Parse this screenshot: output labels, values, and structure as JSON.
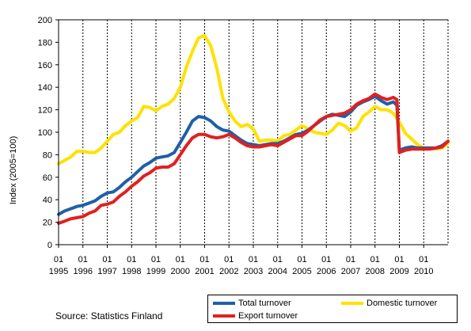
{
  "source_text": "Source: Statistics Finland",
  "chart_data": {
    "type": "line",
    "title": "",
    "xlabel": "",
    "ylabel": "Index (2005=100)",
    "ylim": [
      0,
      200
    ],
    "yticks": [
      0,
      20,
      40,
      60,
      80,
      100,
      120,
      140,
      160,
      180,
      200
    ],
    "xlim": [
      1995.0,
      2011.0
    ],
    "x_tick_month": "01",
    "x_tick_years": [
      "1995",
      "1996",
      "1997",
      "1998",
      "1999",
      "2000",
      "2001",
      "2002",
      "2003",
      "2004",
      "2005",
      "2006",
      "2007",
      "2008",
      "2009",
      "2010"
    ],
    "grid": "vertical dashed at each year, solid at 200",
    "legend_position": "bottom-right",
    "series": [
      {
        "name": "Domestic turnover",
        "color": "#ffe100",
        "points": [
          [
            1995.0,
            72
          ],
          [
            1995.25,
            75
          ],
          [
            1995.5,
            78
          ],
          [
            1995.75,
            83
          ],
          [
            1996.0,
            83
          ],
          [
            1996.25,
            82
          ],
          [
            1996.5,
            82
          ],
          [
            1996.75,
            86
          ],
          [
            1997.0,
            92
          ],
          [
            1997.25,
            98
          ],
          [
            1997.5,
            100
          ],
          [
            1997.75,
            106
          ],
          [
            1998.0,
            110
          ],
          [
            1998.25,
            113
          ],
          [
            1998.5,
            123
          ],
          [
            1998.75,
            122
          ],
          [
            1999.0,
            119
          ],
          [
            1999.25,
            123
          ],
          [
            1999.5,
            125
          ],
          [
            1999.75,
            130
          ],
          [
            2000.0,
            140
          ],
          [
            2000.25,
            158
          ],
          [
            2000.5,
            172
          ],
          [
            2000.75,
            184
          ],
          [
            2001.0,
            186
          ],
          [
            2001.25,
            177
          ],
          [
            2001.5,
            157
          ],
          [
            2001.75,
            130
          ],
          [
            2002.0,
            118
          ],
          [
            2002.25,
            110
          ],
          [
            2002.5,
            105
          ],
          [
            2002.75,
            107
          ],
          [
            2003.0,
            103
          ],
          [
            2003.25,
            92
          ],
          [
            2003.5,
            93
          ],
          [
            2003.75,
            93
          ],
          [
            2004.0,
            92
          ],
          [
            2004.25,
            97
          ],
          [
            2004.5,
            98
          ],
          [
            2004.75,
            102
          ],
          [
            2005.0,
            106
          ],
          [
            2005.25,
            103
          ],
          [
            2005.5,
            100
          ],
          [
            2005.75,
            99
          ],
          [
            2006.0,
            98
          ],
          [
            2006.25,
            102
          ],
          [
            2006.5,
            108
          ],
          [
            2006.75,
            106
          ],
          [
            2007.0,
            101
          ],
          [
            2007.25,
            104
          ],
          [
            2007.5,
            114
          ],
          [
            2007.75,
            118
          ],
          [
            2008.0,
            123
          ],
          [
            2008.25,
            120
          ],
          [
            2008.5,
            120
          ],
          [
            2008.75,
            117
          ],
          [
            2009.0,
            109
          ],
          [
            2009.25,
            99
          ],
          [
            2009.5,
            94
          ],
          [
            2009.75,
            89
          ],
          [
            2010.0,
            86
          ],
          [
            2010.25,
            86
          ],
          [
            2010.5,
            85
          ],
          [
            2010.75,
            86
          ],
          [
            2011.0,
            90
          ]
        ]
      },
      {
        "name": "Total turnover",
        "color": "#1f5fa8",
        "points": [
          [
            1995.0,
            27
          ],
          [
            1995.25,
            30
          ],
          [
            1995.5,
            32
          ],
          [
            1995.75,
            34
          ],
          [
            1996.0,
            35
          ],
          [
            1996.25,
            37
          ],
          [
            1996.5,
            39
          ],
          [
            1996.75,
            43
          ],
          [
            1997.0,
            46
          ],
          [
            1997.25,
            47
          ],
          [
            1997.5,
            51
          ],
          [
            1997.75,
            56
          ],
          [
            1998.0,
            60
          ],
          [
            1998.25,
            65
          ],
          [
            1998.5,
            70
          ],
          [
            1998.75,
            73
          ],
          [
            1999.0,
            77
          ],
          [
            1999.25,
            78
          ],
          [
            1999.5,
            79
          ],
          [
            1999.75,
            82
          ],
          [
            2000.0,
            91
          ],
          [
            2000.25,
            100
          ],
          [
            2000.5,
            110
          ],
          [
            2000.75,
            114
          ],
          [
            2001.0,
            113
          ],
          [
            2001.25,
            110
          ],
          [
            2001.5,
            105
          ],
          [
            2001.75,
            102
          ],
          [
            2002.0,
            101
          ],
          [
            2002.25,
            97
          ],
          [
            2002.5,
            93
          ],
          [
            2002.75,
            90
          ],
          [
            2003.0,
            89
          ],
          [
            2003.25,
            88
          ],
          [
            2003.5,
            89
          ],
          [
            2003.75,
            90
          ],
          [
            2004.0,
            90
          ],
          [
            2004.25,
            92
          ],
          [
            2004.5,
            95
          ],
          [
            2004.75,
            98
          ],
          [
            2005.0,
            99
          ],
          [
            2005.25,
            102
          ],
          [
            2005.5,
            106
          ],
          [
            2005.75,
            110
          ],
          [
            2006.0,
            114
          ],
          [
            2006.25,
            116
          ],
          [
            2006.5,
            115
          ],
          [
            2006.75,
            114
          ],
          [
            2007.0,
            118
          ],
          [
            2007.25,
            124
          ],
          [
            2007.5,
            127
          ],
          [
            2007.75,
            129
          ],
          [
            2008.0,
            132
          ],
          [
            2008.25,
            128
          ],
          [
            2008.5,
            125
          ],
          [
            2008.75,
            127
          ],
          [
            2008.9,
            124
          ],
          [
            2009.0,
            84
          ],
          [
            2009.25,
            86
          ],
          [
            2009.5,
            87
          ],
          [
            2009.75,
            86
          ],
          [
            2010.0,
            86
          ],
          [
            2010.25,
            86
          ],
          [
            2010.5,
            86
          ],
          [
            2010.75,
            88
          ],
          [
            2011.0,
            92
          ]
        ]
      },
      {
        "name": "Export turnover",
        "color": "#e02020",
        "points": [
          [
            1995.0,
            19
          ],
          [
            1995.25,
            21
          ],
          [
            1995.5,
            23
          ],
          [
            1995.75,
            24
          ],
          [
            1996.0,
            25
          ],
          [
            1996.25,
            28
          ],
          [
            1996.5,
            30
          ],
          [
            1996.75,
            35
          ],
          [
            1997.0,
            36
          ],
          [
            1997.25,
            38
          ],
          [
            1997.5,
            43
          ],
          [
            1997.75,
            47
          ],
          [
            1998.0,
            52
          ],
          [
            1998.25,
            56
          ],
          [
            1998.5,
            61
          ],
          [
            1998.75,
            64
          ],
          [
            1999.0,
            68
          ],
          [
            1999.25,
            69
          ],
          [
            1999.5,
            69
          ],
          [
            1999.75,
            72
          ],
          [
            2000.0,
            80
          ],
          [
            2000.25,
            88
          ],
          [
            2000.5,
            95
          ],
          [
            2000.75,
            98
          ],
          [
            2001.0,
            98
          ],
          [
            2001.25,
            96
          ],
          [
            2001.5,
            95
          ],
          [
            2001.75,
            96
          ],
          [
            2002.0,
            98
          ],
          [
            2002.25,
            95
          ],
          [
            2002.5,
            91
          ],
          [
            2002.75,
            88
          ],
          [
            2003.0,
            87
          ],
          [
            2003.25,
            87
          ],
          [
            2003.5,
            88
          ],
          [
            2003.75,
            89
          ],
          [
            2004.0,
            88
          ],
          [
            2004.25,
            91
          ],
          [
            2004.5,
            94
          ],
          [
            2004.75,
            97
          ],
          [
            2005.0,
            97
          ],
          [
            2005.25,
            101
          ],
          [
            2005.5,
            106
          ],
          [
            2005.75,
            111
          ],
          [
            2006.0,
            114
          ],
          [
            2006.25,
            115
          ],
          [
            2006.5,
            116
          ],
          [
            2006.75,
            117
          ],
          [
            2007.0,
            120
          ],
          [
            2007.25,
            125
          ],
          [
            2007.5,
            128
          ],
          [
            2007.75,
            130
          ],
          [
            2008.0,
            134
          ],
          [
            2008.25,
            131
          ],
          [
            2008.5,
            129
          ],
          [
            2008.75,
            131
          ],
          [
            2008.9,
            129
          ],
          [
            2009.0,
            82
          ],
          [
            2009.25,
            84
          ],
          [
            2009.5,
            85
          ],
          [
            2009.75,
            85
          ],
          [
            2010.0,
            85
          ],
          [
            2010.25,
            85
          ],
          [
            2010.5,
            86
          ],
          [
            2010.75,
            87
          ],
          [
            2011.0,
            92
          ]
        ]
      }
    ]
  }
}
